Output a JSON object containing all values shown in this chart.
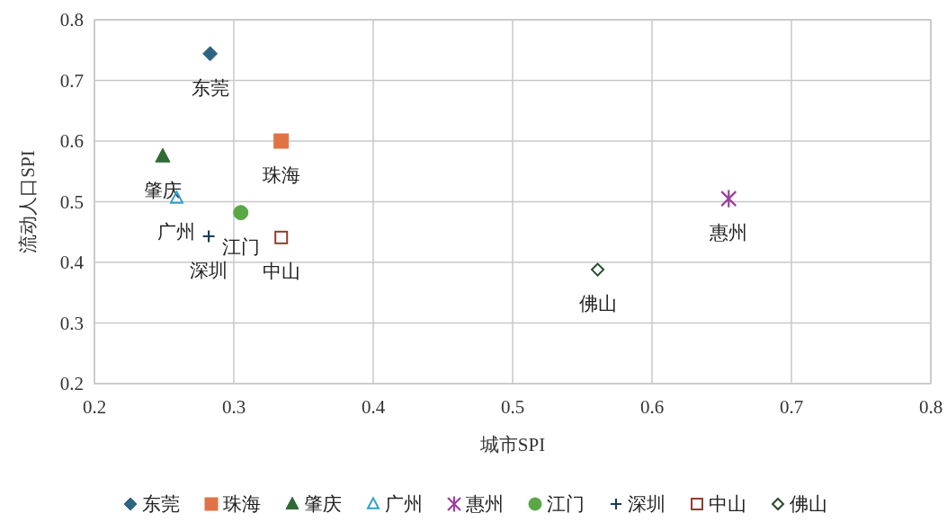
{
  "chart_data": {
    "type": "scatter",
    "xlabel": "城市SPI",
    "ylabel": "流动人口SPI",
    "xlim": [
      0.2,
      0.8
    ],
    "ylim": [
      0.2,
      0.8
    ],
    "xticks": [
      0.2,
      0.3,
      0.4,
      0.5,
      0.6,
      0.7,
      0.8
    ],
    "yticks": [
      0.2,
      0.3,
      0.4,
      0.5,
      0.6,
      0.7,
      0.8
    ],
    "grid": true,
    "legend": "bottom",
    "series": [
      {
        "name": "东莞",
        "color": "#2e6585",
        "marker": "diamond",
        "x": [
          0.283
        ],
        "values": [
          0.744
        ]
      },
      {
        "name": "珠海",
        "color": "#e07345",
        "marker": "square",
        "x": [
          0.334
        ],
        "values": [
          0.6
        ]
      },
      {
        "name": "肇庆",
        "color": "#2e6a36",
        "marker": "triangle",
        "x": [
          0.249
        ],
        "values": [
          0.575
        ]
      },
      {
        "name": "广州",
        "color": "#2fa0d0",
        "marker": "triangle",
        "x": [
          0.259
        ],
        "values": [
          0.506
        ]
      },
      {
        "name": "惠州",
        "color": "#9a3f9e",
        "marker": "cross",
        "x": [
          0.655
        ],
        "values": [
          0.505
        ]
      },
      {
        "name": "江门",
        "color": "#5aa845",
        "marker": "circle",
        "x": [
          0.305
        ],
        "values": [
          0.482
        ]
      },
      {
        "name": "深圳",
        "color": "#1d3e5a",
        "marker": "cross",
        "x": [
          0.282
        ],
        "values": [
          0.443
        ]
      },
      {
        "name": "中山",
        "color": "#8e3f2c",
        "marker": "square",
        "x": [
          0.334
        ],
        "values": [
          0.441
        ]
      },
      {
        "name": "佛山",
        "color": "#254d2e",
        "marker": "diamond",
        "x": [
          0.561
        ],
        "values": [
          0.388
        ]
      }
    ]
  }
}
